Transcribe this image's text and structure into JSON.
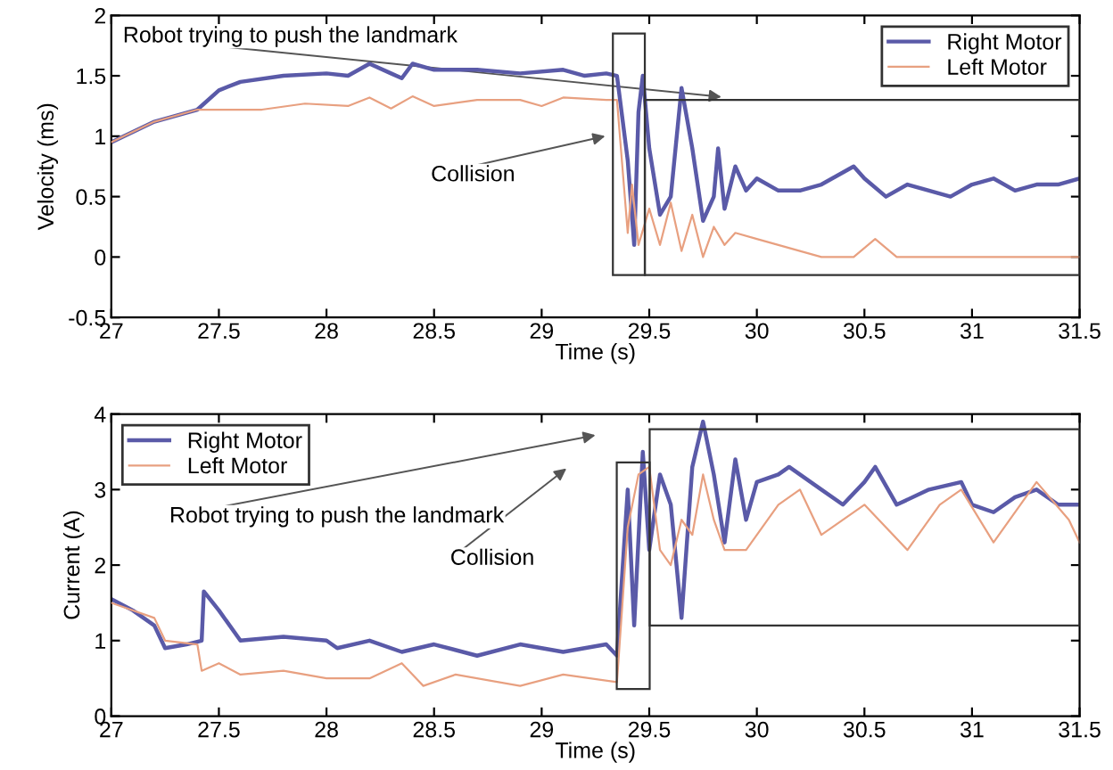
{
  "chart_data": [
    {
      "type": "line",
      "xlabel": "Time (s)",
      "ylabel": "Velocity (ms)",
      "legend": "top right",
      "grid": false,
      "xlim": [
        27,
        31.5
      ],
      "xticks": [
        27,
        27.5,
        28,
        28.5,
        29,
        29.5,
        30,
        30.5,
        31,
        31.5
      ],
      "ylim": [
        -0.5,
        2
      ],
      "yticks": [
        -0.5,
        0,
        0.5,
        1,
        1.5,
        2
      ],
      "series": [
        {
          "name": "Right Motor",
          "color": "#5a5aa8",
          "x": [
            27,
            27.2,
            27.4,
            27.5,
            27.6,
            27.8,
            28,
            28.1,
            28.2,
            28.3,
            28.35,
            28.4,
            28.5,
            28.7,
            28.9,
            29.1,
            29.2,
            29.3,
            29.35,
            29.4,
            29.43,
            29.45,
            29.47,
            29.5,
            29.55,
            29.6,
            29.65,
            29.7,
            29.75,
            29.8,
            29.82,
            29.85,
            29.9,
            29.95,
            30,
            30.1,
            30.2,
            30.3,
            30.45,
            30.5,
            30.6,
            30.7,
            30.8,
            30.9,
            31,
            31.1,
            31.2,
            31.3,
            31.4,
            31.5
          ],
          "values": [
            0.95,
            1.12,
            1.22,
            1.38,
            1.45,
            1.5,
            1.52,
            1.5,
            1.6,
            1.52,
            1.48,
            1.6,
            1.55,
            1.55,
            1.52,
            1.55,
            1.5,
            1.52,
            1.5,
            0.8,
            0.1,
            1.2,
            1.5,
            0.9,
            0.35,
            0.5,
            1.4,
            0.9,
            0.3,
            0.5,
            0.9,
            0.4,
            0.75,
            0.55,
            0.65,
            0.55,
            0.55,
            0.6,
            0.75,
            0.65,
            0.5,
            0.6,
            0.55,
            0.5,
            0.6,
            0.65,
            0.55,
            0.6,
            0.6,
            0.65
          ]
        },
        {
          "name": "Left Motor",
          "color": "#e8a080",
          "x": [
            27,
            27.2,
            27.4,
            27.5,
            27.7,
            27.9,
            28.1,
            28.2,
            28.3,
            28.4,
            28.5,
            28.7,
            28.9,
            29,
            29.1,
            29.3,
            29.35,
            29.4,
            29.42,
            29.45,
            29.5,
            29.55,
            29.6,
            29.65,
            29.7,
            29.75,
            29.8,
            29.85,
            29.9,
            30,
            30.1,
            30.2,
            30.3,
            30.45,
            30.55,
            30.65,
            31,
            31.5
          ],
          "values": [
            0.95,
            1.12,
            1.22,
            1.22,
            1.22,
            1.27,
            1.25,
            1.32,
            1.23,
            1.33,
            1.25,
            1.3,
            1.3,
            1.25,
            1.32,
            1.3,
            1.3,
            0.2,
            0.6,
            0.1,
            0.4,
            0.1,
            0.45,
            0.05,
            0.35,
            0.0,
            0.25,
            0.1,
            0.2,
            0.15,
            0.1,
            0.05,
            0.0,
            0.0,
            0.15,
            0.0,
            0.0,
            0.0
          ]
        }
      ],
      "annotations": [
        "Robot trying to push the landmark",
        "Collision"
      ]
    },
    {
      "type": "line",
      "xlabel": "Time (s)",
      "ylabel": "Current (A)",
      "legend": "top left",
      "grid": false,
      "xlim": [
        27,
        31.5
      ],
      "xticks": [
        27,
        27.5,
        28,
        28.5,
        29,
        29.5,
        30,
        30.5,
        31,
        31.5
      ],
      "ylim": [
        0,
        4
      ],
      "yticks": [
        0,
        1,
        2,
        3,
        4
      ],
      "series": [
        {
          "name": "Right Motor",
          "color": "#5a5aa8",
          "x": [
            27,
            27.1,
            27.2,
            27.25,
            27.35,
            27.42,
            27.43,
            27.5,
            27.6,
            27.8,
            28,
            28.05,
            28.2,
            28.35,
            28.5,
            28.7,
            28.9,
            29.1,
            29.3,
            29.35,
            29.4,
            29.43,
            29.47,
            29.5,
            29.55,
            29.6,
            29.65,
            29.7,
            29.75,
            29.8,
            29.85,
            29.9,
            29.95,
            30,
            30.1,
            30.15,
            30.3,
            30.4,
            30.5,
            30.55,
            30.65,
            30.8,
            30.95,
            31,
            31.1,
            31.2,
            31.3,
            31.4,
            31.5
          ],
          "values": [
            1.55,
            1.4,
            1.2,
            0.9,
            0.95,
            1.0,
            1.65,
            1.4,
            1.0,
            1.05,
            1.0,
            0.9,
            1.0,
            0.85,
            0.95,
            0.8,
            0.95,
            0.85,
            0.95,
            0.8,
            3.0,
            1.2,
            3.5,
            2.2,
            3.2,
            2.8,
            1.3,
            3.3,
            3.9,
            3.2,
            2.3,
            3.4,
            2.6,
            3.1,
            3.2,
            3.3,
            3.0,
            2.8,
            3.1,
            3.3,
            2.8,
            3.0,
            3.1,
            2.8,
            2.7,
            2.9,
            3.0,
            2.8,
            2.8
          ]
        },
        {
          "name": "Left Motor",
          "color": "#e8a080",
          "x": [
            27,
            27.2,
            27.25,
            27.4,
            27.42,
            27.5,
            27.6,
            27.8,
            28,
            28.2,
            28.35,
            28.45,
            28.6,
            28.9,
            29.1,
            29.35,
            29.4,
            29.45,
            29.5,
            29.55,
            29.6,
            29.65,
            29.7,
            29.75,
            29.8,
            29.85,
            29.95,
            30.1,
            30.2,
            30.3,
            30.5,
            30.7,
            30.85,
            30.95,
            31.1,
            31.3,
            31.45,
            31.5
          ],
          "values": [
            1.5,
            1.3,
            1.0,
            0.95,
            0.6,
            0.7,
            0.55,
            0.6,
            0.5,
            0.5,
            0.7,
            0.4,
            0.55,
            0.4,
            0.55,
            0.45,
            2.5,
            3.2,
            3.3,
            2.2,
            2.0,
            2.6,
            2.4,
            3.2,
            2.6,
            2.2,
            2.2,
            2.8,
            3.0,
            2.4,
            2.8,
            2.2,
            2.8,
            3.0,
            2.3,
            3.1,
            2.6,
            2.3
          ]
        }
      ],
      "annotations": [
        "Robot trying to push the landmark",
        "Collision"
      ]
    }
  ]
}
